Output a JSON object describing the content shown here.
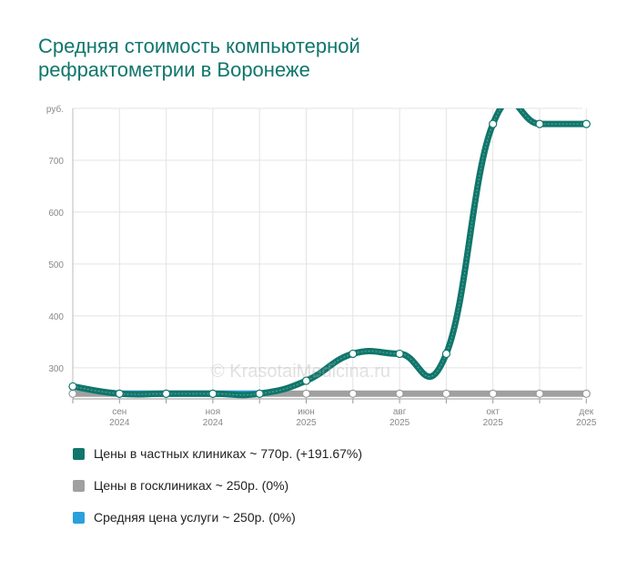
{
  "chart_data": {
    "type": "line",
    "title_lines": [
      "Средняя стоимость компьютерной",
      "рефрактометрии в Воронеже"
    ],
    "unit_label": "руб.",
    "watermark": "© KrasotaiMedicina.ru",
    "yticks": [
      300,
      400,
      500,
      600,
      700
    ],
    "ylim": [
      240,
      800
    ],
    "xlim": [
      0,
      11.3
    ],
    "xticks": [
      {
        "x": 1,
        "month": "сен",
        "year": "2024"
      },
      {
        "x": 3,
        "month": "ноя",
        "year": "2024"
      },
      {
        "x": 5,
        "month": "июн",
        "year": "2025"
      },
      {
        "x": 7,
        "month": "авг",
        "year": "2025"
      },
      {
        "x": 9,
        "month": "окт",
        "year": "2025"
      },
      {
        "x": 11,
        "month": "дек",
        "year": "2025"
      }
    ],
    "series": [
      {
        "name": "Цены в госклиниках ~ 250р. (0%)",
        "color": "#a0a0a0",
        "x": [
          0,
          1,
          2,
          3,
          4,
          5,
          6,
          7,
          8,
          9,
          10,
          11
        ],
        "values": [
          250,
          250,
          250,
          250,
          250,
          250,
          250,
          250,
          250,
          250,
          250,
          250
        ]
      },
      {
        "name": "Средняя цена услуги ~ 250р. (0%)",
        "color": "#2aa0dc",
        "x": [
          1,
          2,
          3,
          4
        ],
        "values": [
          250,
          250,
          250,
          250
        ]
      },
      {
        "name": "Цены в частных клиниках ~ 770р. (+191.67%)",
        "color": "#10766b",
        "x": [
          0,
          1,
          2,
          3,
          4,
          5,
          6,
          7,
          8,
          9,
          10,
          11
        ],
        "values": [
          264,
          250,
          250,
          250,
          250,
          275,
          327,
          327,
          327,
          770,
          770,
          770
        ]
      }
    ],
    "legend_order": [
      2,
      0,
      1
    ]
  }
}
